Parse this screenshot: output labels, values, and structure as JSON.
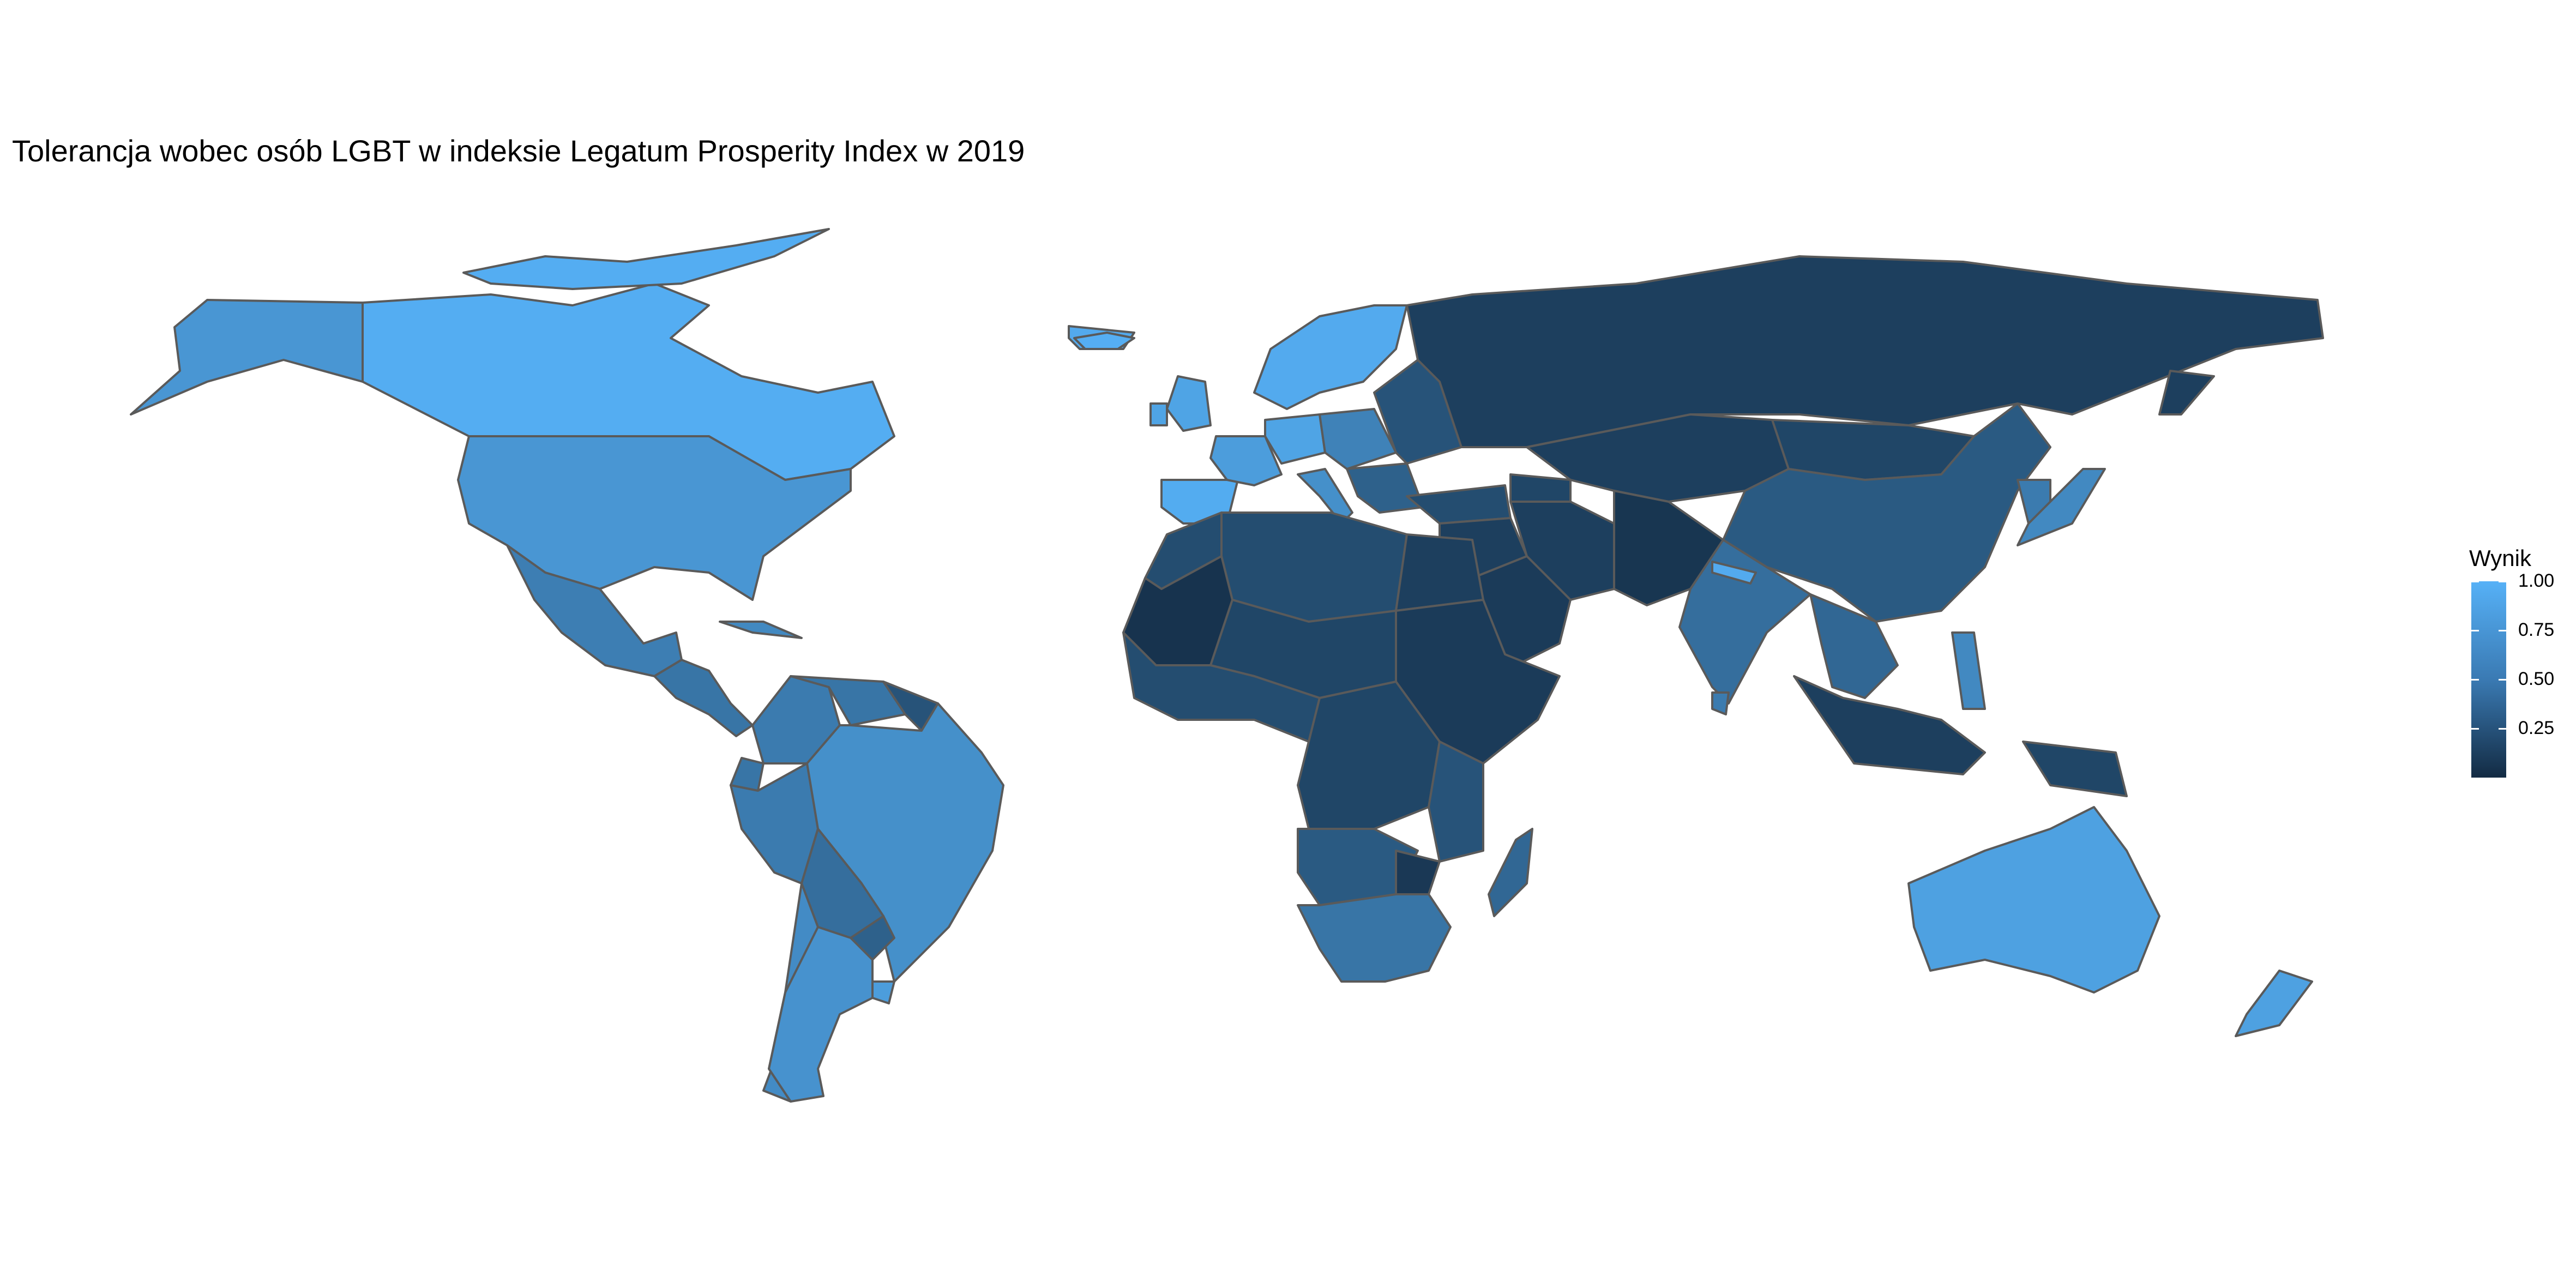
{
  "chart_data": {
    "type": "choropleth",
    "title": "Tolerancja wobec osób LGBT w indeksie Legatum Prosperity Index w 2019",
    "legend": {
      "title": "Wynik",
      "placement": "right",
      "ticks": [
        "1.00",
        "0.75",
        "0.50",
        "0.25"
      ],
      "tick_values": [
        1.0,
        0.75,
        0.5,
        0.25
      ],
      "range": [
        0.0,
        1.0
      ],
      "colors": {
        "low": "#132b43",
        "high": "#56b1f7"
      }
    },
    "colors": {
      "border": "#5a5a5a",
      "background": "#ffffff"
    },
    "regions": [
      {
        "name": "Canada",
        "value": 0.97
      },
      {
        "name": "Greenland",
        "value": 0.95
      },
      {
        "name": "Alaska (USA)",
        "value": 0.8
      },
      {
        "name": "United States",
        "value": 0.8
      },
      {
        "name": "Mexico",
        "value": 0.62
      },
      {
        "name": "Central America",
        "value": 0.55
      },
      {
        "name": "Cuba / Caribbean",
        "value": 0.7
      },
      {
        "name": "Colombia",
        "value": 0.6
      },
      {
        "name": "Venezuela",
        "value": 0.55
      },
      {
        "name": "Guianas",
        "value": 0.3
      },
      {
        "name": "Ecuador",
        "value": 0.55
      },
      {
        "name": "Peru",
        "value": 0.6
      },
      {
        "name": "Brazil",
        "value": 0.75
      },
      {
        "name": "Bolivia",
        "value": 0.5
      },
      {
        "name": "Paraguay",
        "value": 0.4
      },
      {
        "name": "Chile",
        "value": 0.72
      },
      {
        "name": "Argentina",
        "value": 0.77
      },
      {
        "name": "Uruguay",
        "value": 0.85
      },
      {
        "name": "Iceland",
        "value": 0.98
      },
      {
        "name": "United Kingdom",
        "value": 0.9
      },
      {
        "name": "Ireland",
        "value": 0.9
      },
      {
        "name": "Scandinavia",
        "value": 0.95
      },
      {
        "name": "Spain & Portugal",
        "value": 0.96
      },
      {
        "name": "France",
        "value": 0.85
      },
      {
        "name": "Western Europe",
        "value": 0.9
      },
      {
        "name": "Central Europe",
        "value": 0.65
      },
      {
        "name": "Italy",
        "value": 0.75
      },
      {
        "name": "Eastern Europe",
        "value": 0.3
      },
      {
        "name": "Balkans",
        "value": 0.4
      },
      {
        "name": "Turkey",
        "value": 0.25
      },
      {
        "name": "Russia",
        "value": 0.15
      },
      {
        "name": "Kazakhstan & Central Asia",
        "value": 0.15
      },
      {
        "name": "Caucasus",
        "value": 0.2
      },
      {
        "name": "Mongolia",
        "value": 0.2
      },
      {
        "name": "China",
        "value": 0.35
      },
      {
        "name": "Korea",
        "value": 0.6
      },
      {
        "name": "Japan",
        "value": 0.7
      },
      {
        "name": "Middle East",
        "value": 0.15
      },
      {
        "name": "Arabian Peninsula",
        "value": 0.12
      },
      {
        "name": "Iran",
        "value": 0.15
      },
      {
        "name": "Afghanistan & Pakistan",
        "value": 0.08
      },
      {
        "name": "India",
        "value": 0.5
      },
      {
        "name": "Nepal",
        "value": 0.95
      },
      {
        "name": "Sri Lanka",
        "value": 0.6
      },
      {
        "name": "Southeast Asia",
        "value": 0.45
      },
      {
        "name": "Philippines",
        "value": 0.7
      },
      {
        "name": "Indonesia",
        "value": 0.15
      },
      {
        "name": "Papua New Guinea",
        "value": 0.2
      },
      {
        "name": "Australia",
        "value": 0.88
      },
      {
        "name": "New Zealand",
        "value": 0.88
      },
      {
        "name": "Morocco & Western Sahara",
        "value": 0.25
      },
      {
        "name": "Algeria & Libya",
        "value": 0.25
      },
      {
        "name": "Egypt",
        "value": 0.15
      },
      {
        "name": "Mauritania",
        "value": 0.06
      },
      {
        "name": "Sahel",
        "value": 0.2
      },
      {
        "name": "West Africa",
        "value": 0.25
      },
      {
        "name": "Sudan & Horn of Africa",
        "value": 0.12
      },
      {
        "name": "Central Africa",
        "value": 0.2
      },
      {
        "name": "East Africa",
        "value": 0.3
      },
      {
        "name": "Angola & Zambia",
        "value": 0.35
      },
      {
        "name": "Southern Africa",
        "value": 0.55
      },
      {
        "name": "Zimbabwe",
        "value": 0.1
      },
      {
        "name": "Madagascar",
        "value": 0.45
      }
    ]
  }
}
